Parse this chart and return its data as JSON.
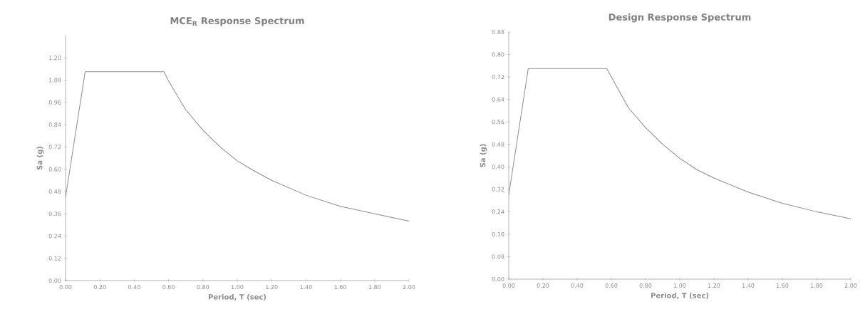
{
  "chart_data": [
    {
      "type": "line",
      "title": "MCE$_{R}$ Response Spectrum",
      "xlabel": "Period, T (sec)",
      "ylabel": "Sa (g)",
      "x": [
        0,
        0.114,
        0.573,
        0.6,
        0.7,
        0.8,
        0.9,
        1.0,
        1.1,
        1.2,
        1.4,
        1.6,
        1.8,
        2.0
      ],
      "series": [
        {
          "color": "#8a8a8a",
          "values": [
            0.45,
            1.125,
            1.125,
            1.075,
            0.92,
            0.81,
            0.72,
            0.645,
            0.59,
            0.54,
            0.46,
            0.4,
            0.36,
            0.32
          ]
        }
      ],
      "xlim": [
        0,
        2.0
      ],
      "ylim": [
        0,
        1.32
      ],
      "xticks": [
        {
          "value": 0,
          "label": "0.00"
        },
        {
          "value": 0.2,
          "label": "0.20"
        },
        {
          "value": 0.4,
          "label": "0.40"
        },
        {
          "value": 0.6,
          "label": "0.60"
        },
        {
          "value": 0.8,
          "label": "0.80"
        },
        {
          "value": 1.0,
          "label": "1.00"
        },
        {
          "value": 1.2,
          "label": "1.20"
        },
        {
          "value": 1.4,
          "label": "1.40"
        },
        {
          "value": 1.6,
          "label": "1.60"
        },
        {
          "value": 1.8,
          "label": "1.80"
        },
        {
          "value": 2.0,
          "label": "2.00"
        }
      ],
      "yticks": [
        {
          "value": 0,
          "label": "0.00"
        },
        {
          "value": 0.12,
          "label": "0.12"
        },
        {
          "value": 0.24,
          "label": "0.24"
        },
        {
          "value": 0.36,
          "label": "0.36"
        },
        {
          "value": 0.48,
          "label": "0.48"
        },
        {
          "value": 0.6,
          "label": "0.60"
        },
        {
          "value": 0.72,
          "label": "0.72"
        },
        {
          "value": 0.84,
          "label": "0.84"
        },
        {
          "value": 0.96,
          "label": "0.96"
        },
        {
          "value": 1.08,
          "label": "1.08"
        },
        {
          "value": 1.2,
          "label": "1.20"
        }
      ],
      "grid": false,
      "marker": "none",
      "line_style": "solid"
    },
    {
      "type": "line",
      "title": "Design Response Spectrum",
      "xlabel": "Period, T (sec)",
      "ylabel": "Sa (g)",
      "x": [
        0,
        0.114,
        0.573,
        0.6,
        0.7,
        0.8,
        0.9,
        1.0,
        1.1,
        1.2,
        1.4,
        1.6,
        1.8,
        2.0
      ],
      "series": [
        {
          "color": "#8a8a8a",
          "values": [
            0.3,
            0.75,
            0.75,
            0.72,
            0.61,
            0.54,
            0.48,
            0.43,
            0.39,
            0.36,
            0.31,
            0.27,
            0.24,
            0.215
          ]
        }
      ],
      "xlim": [
        0,
        2.0
      ],
      "ylim": [
        0,
        0.88
      ],
      "xticks": [
        {
          "value": 0,
          "label": "0.00"
        },
        {
          "value": 0.2,
          "label": "0.20"
        },
        {
          "value": 0.4,
          "label": "0.40"
        },
        {
          "value": 0.6,
          "label": "0.60"
        },
        {
          "value": 0.8,
          "label": "0.80"
        },
        {
          "value": 1.0,
          "label": "1.00"
        },
        {
          "value": 1.2,
          "label": "1.20"
        },
        {
          "value": 1.4,
          "label": "1.40"
        },
        {
          "value": 1.6,
          "label": "1.60"
        },
        {
          "value": 1.8,
          "label": "1.80"
        },
        {
          "value": 2.0,
          "label": "2.00"
        }
      ],
      "yticks": [
        {
          "value": 0,
          "label": "0.00"
        },
        {
          "value": 0.08,
          "label": "0.08"
        },
        {
          "value": 0.16,
          "label": "0.16"
        },
        {
          "value": 0.24,
          "label": "0.24"
        },
        {
          "value": 0.32,
          "label": "0.32"
        },
        {
          "value": 0.4,
          "label": "0.40"
        },
        {
          "value": 0.48,
          "label": "0.48"
        },
        {
          "value": 0.56,
          "label": "0.56"
        },
        {
          "value": 0.64,
          "label": "0.64"
        },
        {
          "value": 0.72,
          "label": "0.72"
        },
        {
          "value": 0.8,
          "label": "0.80"
        },
        {
          "value": 0.88,
          "label": "0.88"
        }
      ],
      "grid": false,
      "marker": "none",
      "line_style": "solid"
    }
  ]
}
